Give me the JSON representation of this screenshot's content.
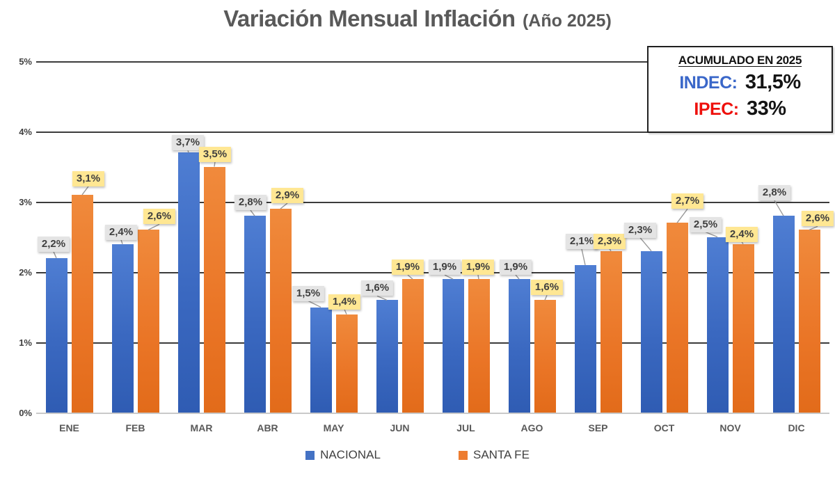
{
  "title": {
    "main": "Variación Mensual Inflación",
    "suffix": "(Año 2025)"
  },
  "summary_box": {
    "title": "ACUMULADO EN 2025",
    "rows": [
      {
        "label": "INDEC:",
        "value": "31,5%",
        "label_color": "#3a67c9"
      },
      {
        "label": "IPEC:",
        "value": "33%",
        "label_color": "#ee100c"
      }
    ]
  },
  "chart_data": {
    "type": "bar",
    "title": "Variación Mensual Inflación (Año 2025)",
    "categories": [
      "ENE",
      "FEB",
      "MAR",
      "ABR",
      "MAY",
      "JUN",
      "JUL",
      "AGO",
      "SEP",
      "OCT",
      "NOV",
      "DIC"
    ],
    "series": [
      {
        "name": "NACIONAL",
        "color": "#4472C4",
        "label_bg": "#e4e4e4",
        "values": [
          2.2,
          2.4,
          3.7,
          2.8,
          1.5,
          1.6,
          1.9,
          1.9,
          2.1,
          2.3,
          2.5,
          2.8
        ],
        "labels": [
          "2,2%",
          "2,4%",
          "3,7%",
          "2,8%",
          "1,5%",
          "1,6%",
          "1,9%",
          "1,9%",
          "2,1%",
          "2,3%",
          "2,5%",
          "2,8%"
        ],
        "label_dx": [
          -4,
          -2,
          -1,
          -6,
          -18,
          -14,
          -12,
          -5,
          -5,
          -16,
          -17,
          -13
        ],
        "label_dy": [
          9,
          6,
          3,
          8,
          9,
          6,
          6,
          6,
          23,
          19,
          7,
          22
        ]
      },
      {
        "name": "SANTA FE",
        "color": "#ED7D31",
        "label_bg": "#ffe793",
        "values": [
          3.1,
          2.6,
          3.5,
          2.9,
          1.4,
          1.9,
          1.9,
          1.6,
          2.3,
          2.7,
          2.4,
          2.6
        ],
        "labels": [
          "3,1%",
          "2,6%",
          "3,5%",
          "2,9%",
          "1,4%",
          "1,9%",
          "1,9%",
          "1,6%",
          "2,3%",
          "2,7%",
          "2,4%",
          "2,6%"
        ],
        "label_dx": [
          9,
          16,
          1,
          10,
          -3,
          -7,
          -1,
          3,
          -2,
          15,
          -2,
          12
        ],
        "label_dy": [
          12,
          8,
          7,
          8,
          7,
          6,
          6,
          7,
          3,
          20,
          3,
          5
        ]
      }
    ],
    "xlabel": "",
    "ylabel": "",
    "ylim": [
      0,
      5
    ],
    "ytick_labels": [
      "0%",
      "1%",
      "2%",
      "3%",
      "4%",
      "5%"
    ],
    "grid": true,
    "legend_position": "bottom",
    "leader_line_color": "#9a9a9a"
  }
}
